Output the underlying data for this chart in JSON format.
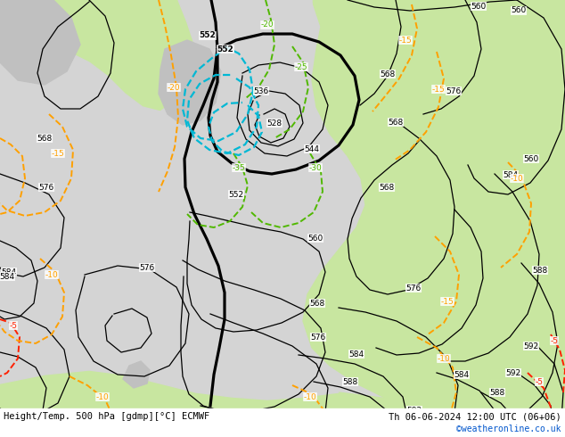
{
  "title_left": "Height/Temp. 500 hPa [gdmp][°C] ECMWF",
  "title_right": "Th 06-06-2024 12:00 UTC (06+06)",
  "watermark": "©weatheronline.co.uk",
  "fig_width": 6.34,
  "fig_height": 4.9,
  "dpi": 100,
  "bg_sea": "#d4d4d4",
  "bg_land_green": "#c8e6a0",
  "bg_land_gray": "#c0c0c0",
  "c_black": "#000000",
  "c_orange": "#ffa000",
  "c_red": "#ff2000",
  "c_cyan": "#00b8d4",
  "c_green": "#50b800",
  "lw_thin": 0.9,
  "lw_bold": 2.3,
  "lw_dash": 1.4,
  "label_fs": 6.5,
  "footer_fs": 7.5,
  "watermark_fs": 7.0
}
